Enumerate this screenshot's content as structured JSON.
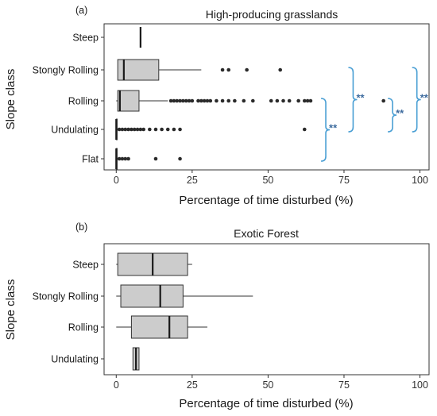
{
  "chart_data": [
    {
      "type": "boxplot",
      "panel_tag": "(a)",
      "title": "High-producing grasslands",
      "xlabel": "Percentage of time disturbed (%)",
      "ylabel": "Slope class",
      "xlim": [
        -4,
        103
      ],
      "xticks": [
        "0",
        "25",
        "50",
        "75",
        "100"
      ],
      "grid": false,
      "categories": [
        "Steep",
        "Stongly Rolling",
        "Rolling",
        "Undulating",
        "Flat"
      ],
      "boxes": [
        {
          "category": "Steep",
          "min": 8,
          "q1": 8,
          "median": 8,
          "q3": 8,
          "max": 8,
          "outliers": []
        },
        {
          "category": "Stongly Rolling",
          "min": 0.5,
          "q1": 0.5,
          "median": 2.5,
          "q3": 14,
          "max": 28,
          "outliers": [
            35,
            37,
            43,
            54
          ]
        },
        {
          "category": "Rolling",
          "min": 0,
          "q1": 0.5,
          "median": 1.2,
          "q3": 7.5,
          "max": 17,
          "outliers": [
            18,
            19,
            20,
            21,
            22,
            23,
            24,
            25,
            27,
            28,
            29,
            30,
            31,
            33,
            35,
            37,
            39,
            42,
            45,
            51,
            53,
            55,
            57,
            60,
            62,
            63,
            64,
            88
          ]
        },
        {
          "category": "Undulating",
          "min": 0,
          "q1": 0,
          "median": 0,
          "q3": 0.3,
          "max": 0.5,
          "outliers": [
            1,
            2,
            3,
            4,
            5,
            6,
            7,
            8,
            9,
            11,
            13,
            15,
            17,
            19,
            21,
            62
          ]
        },
        {
          "category": "Flat",
          "min": 0,
          "q1": 0,
          "median": 0,
          "q3": 0.3,
          "max": 0.5,
          "outliers": [
            1,
            2,
            3,
            4,
            13,
            21
          ]
        }
      ],
      "annotations": [
        {
          "text": "**",
          "between": [
            "Rolling",
            "Flat"
          ],
          "bracket_x": 69
        },
        {
          "text": "**",
          "between": [
            "Stongly Rolling",
            "Undulating"
          ],
          "bracket_x": 78
        },
        {
          "text": "**",
          "between": [
            "Rolling",
            "Undulating"
          ],
          "bracket_x": 91
        },
        {
          "text": "**",
          "between": [
            "Stongly Rolling",
            "Undulating"
          ],
          "bracket_x": 99
        }
      ]
    },
    {
      "type": "boxplot",
      "panel_tag": "(b)",
      "title": "Exotic Forest",
      "xlabel": "Percentage of time disturbed (%)",
      "ylabel": "Slope class",
      "xlim": [
        -4,
        103
      ],
      "xticks": [
        "0",
        "25",
        "50",
        "75",
        "100"
      ],
      "grid": false,
      "categories": [
        "Steep",
        "Stongly Rolling",
        "Rolling",
        "Undulating"
      ],
      "boxes": [
        {
          "category": "Steep",
          "min": 0,
          "q1": 0.5,
          "median": 12,
          "q3": 23.5,
          "max": 25,
          "outliers": []
        },
        {
          "category": "Stongly Rolling",
          "min": 0,
          "q1": 1.5,
          "median": 14.5,
          "q3": 22,
          "max": 45,
          "outliers": []
        },
        {
          "category": "Rolling",
          "min": 0,
          "q1": 5,
          "median": 17.5,
          "q3": 23.5,
          "max": 30,
          "outliers": []
        },
        {
          "category": "Undulating",
          "min": 5.5,
          "q1": 5.5,
          "median": 6.5,
          "q3": 7.5,
          "max": 7.5,
          "outliers": []
        }
      ]
    }
  ]
}
